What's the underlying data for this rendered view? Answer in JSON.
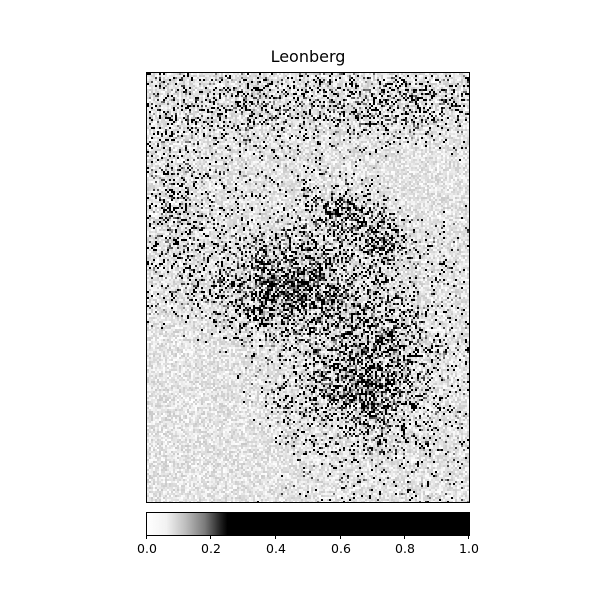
{
  "title": "Leonberg",
  "colorbar": {
    "colormap": "gray_r",
    "range": [
      0.0,
      1.0
    ],
    "ticks": [
      "0.0",
      "0.2",
      "0.4",
      "0.6",
      "0.8",
      "1.0"
    ],
    "colors": {
      "low": "#ffffff",
      "high": "#000000"
    }
  },
  "map": {
    "type": "raster",
    "frame_color": "#000000"
  }
}
